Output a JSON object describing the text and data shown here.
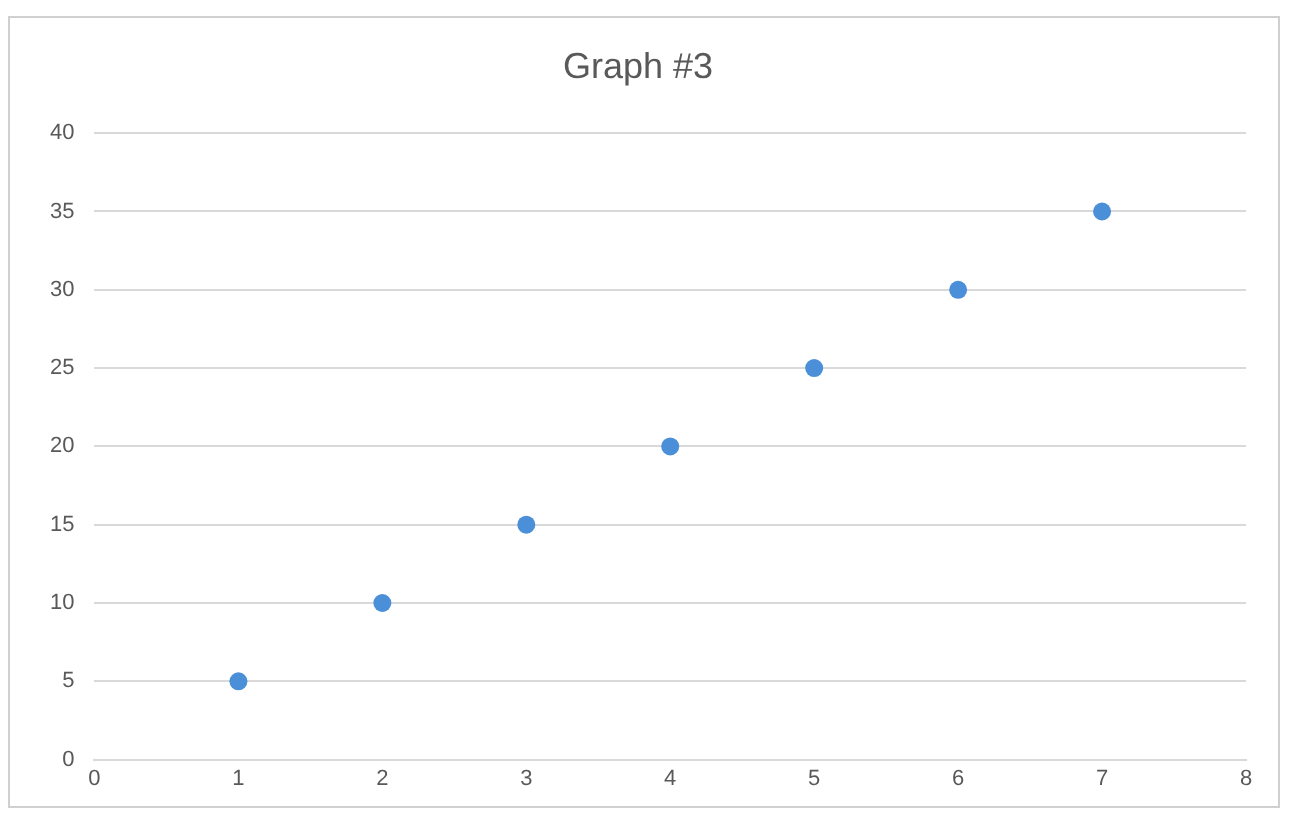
{
  "chart_data": {
    "type": "scatter",
    "title": "Graph #3",
    "x": [
      1,
      2,
      3,
      4,
      5,
      6,
      7
    ],
    "series": [
      {
        "color": "#4a8fd8",
        "values": [
          5,
          10,
          15,
          20,
          25,
          30,
          35
        ]
      }
    ],
    "xlim": [
      0,
      8
    ],
    "xticks": [
      0,
      1,
      2,
      3,
      4,
      5,
      6,
      7,
      8
    ],
    "ylim": [
      0,
      40
    ],
    "yticks": [
      0,
      5,
      10,
      15,
      20,
      25,
      30,
      35,
      40
    ],
    "grid": "y",
    "legend": false,
    "marker": "circle"
  }
}
